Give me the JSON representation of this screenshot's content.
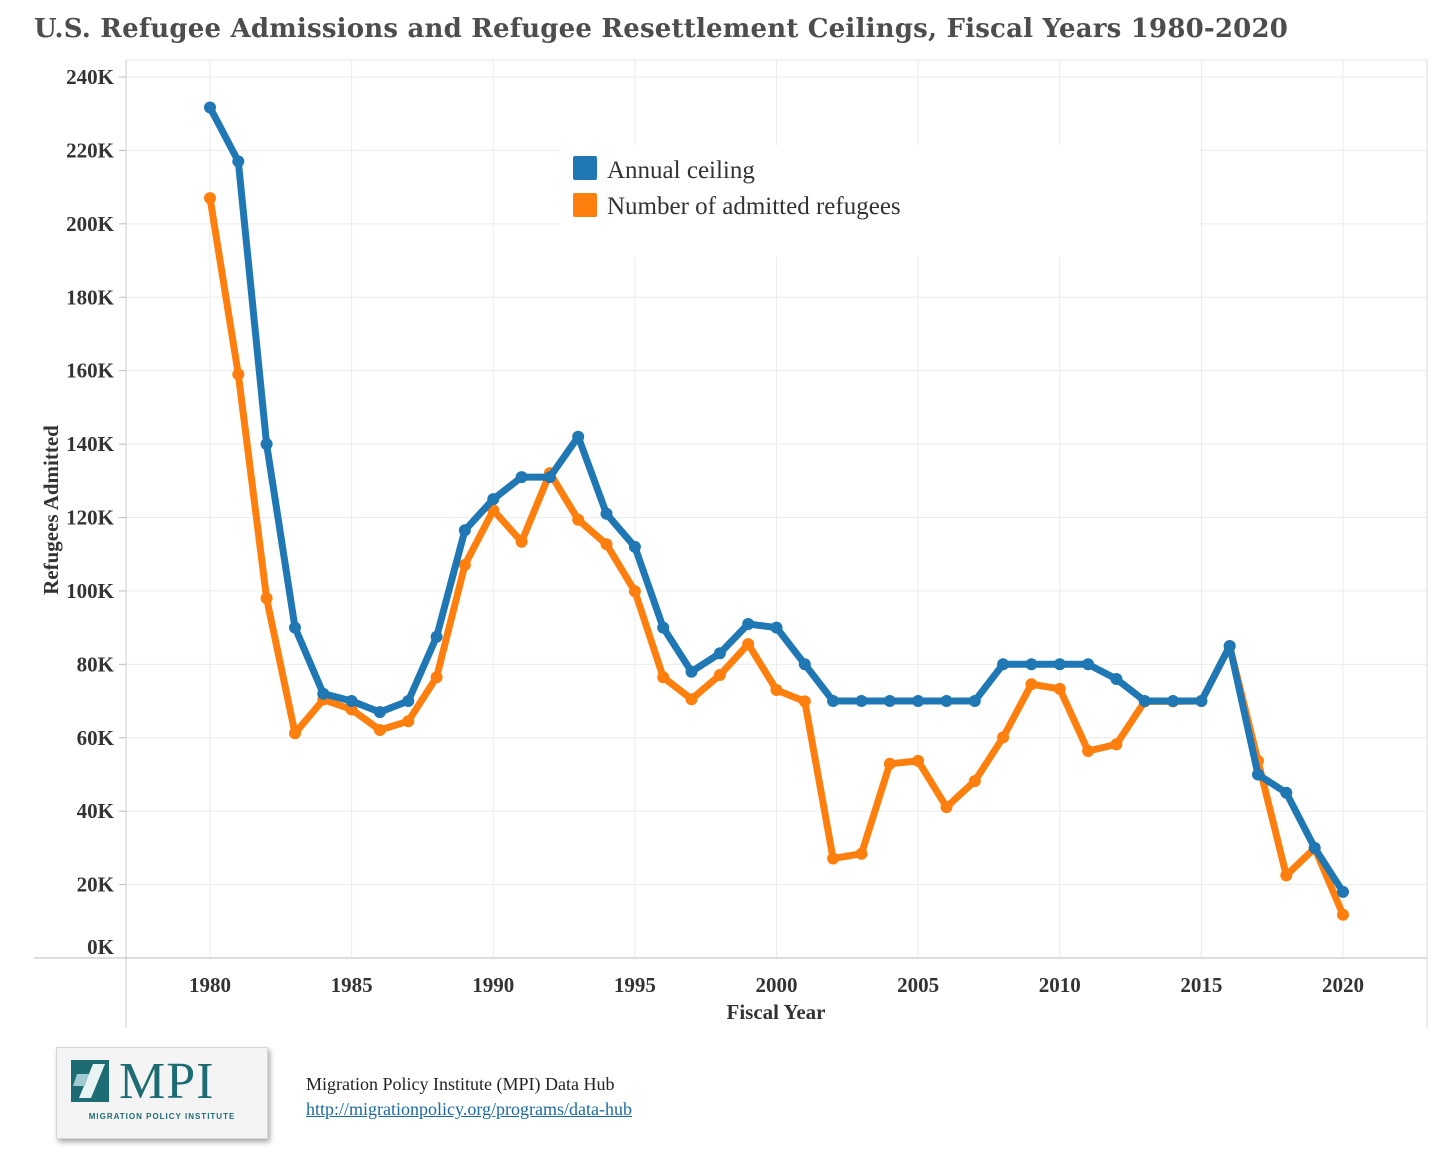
{
  "chart_data": {
    "type": "line",
    "title": "U.S. Refugee Admissions and Refugee Resettlement Ceilings, Fiscal Years 1980-2020",
    "xlabel": "Fiscal Year",
    "ylabel": "Refugees Admitted",
    "xlim": [
      1974.5,
      2023.2
    ],
    "ylim": [
      0,
      240000
    ],
    "x_ticks": [
      1980,
      1985,
      1990,
      1995,
      2000,
      2005,
      2010,
      2015,
      2020
    ],
    "y_ticks": [
      0,
      20000,
      40000,
      60000,
      80000,
      100000,
      120000,
      140000,
      160000,
      180000,
      200000,
      220000,
      240000
    ],
    "y_tick_labels": [
      "0K",
      "20K",
      "40K",
      "60K",
      "80K",
      "100K",
      "120K",
      "140K",
      "160K",
      "180K",
      "200K",
      "220K",
      "240K"
    ],
    "grid": true,
    "legend_position": "top-center",
    "x": [
      1980,
      1981,
      1982,
      1983,
      1984,
      1985,
      1986,
      1987,
      1988,
      1989,
      1990,
      1991,
      1992,
      1993,
      1994,
      1995,
      1996,
      1997,
      1998,
      1999,
      2000,
      2001,
      2002,
      2003,
      2004,
      2005,
      2006,
      2007,
      2008,
      2009,
      2010,
      2011,
      2012,
      2013,
      2014,
      2015,
      2016,
      2017,
      2018,
      2019,
      2020
    ],
    "series": [
      {
        "name": "Annual ceiling",
        "color": "#1f77b4",
        "values": [
          231700,
          217000,
          140000,
          90000,
          72000,
          70000,
          67000,
          70000,
          87500,
          116500,
          125000,
          131000,
          131000,
          142000,
          121000,
          112000,
          90000,
          78000,
          83000,
          91000,
          90000,
          80000,
          70000,
          70000,
          70000,
          70000,
          70000,
          70000,
          80000,
          80000,
          80000,
          80000,
          76000,
          70000,
          70000,
          70000,
          85000,
          50000,
          45000,
          30000,
          18000
        ]
      },
      {
        "name": "Number of admitted refugees",
        "color": "#ff7f0e",
        "values": [
          207000,
          159000,
          98000,
          61200,
          70400,
          67700,
          62100,
          64500,
          76500,
          107100,
          122000,
          113400,
          132100,
          119400,
          112700,
          99900,
          76500,
          70500,
          77100,
          85500,
          73000,
          69900,
          27100,
          28400,
          52900,
          53700,
          41100,
          48200,
          60100,
          74600,
          73300,
          56400,
          58200,
          69900,
          69900,
          70000,
          84900,
          53700,
          22500,
          29900,
          11800
        ]
      }
    ]
  },
  "source": {
    "name": "Migration Policy Institute (MPI) Data Hub",
    "url": "http://migrationpolicy.org/programs/data-hub"
  },
  "logo": {
    "letters": "MPI",
    "subtitle": "MIGRATION POLICY INSTITUTE",
    "color": "#1d6b73"
  }
}
